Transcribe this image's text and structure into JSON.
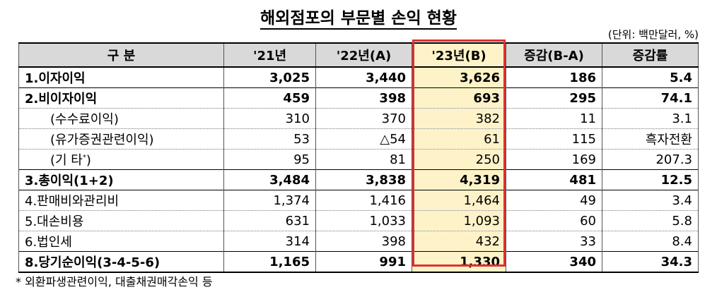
{
  "title": "해외점포의 부문별 손익 현황",
  "unit": "(단위: 백만달러, %)",
  "headers": [
    "구  분",
    "'21년",
    "'22년(A)",
    "'23년(B)",
    "증감(B-A)",
    "증감률"
  ],
  "rows": [
    {
      "label": "1.이자이익",
      "v21": "3,025",
      "v22": "3,440",
      "v23": "3,626",
      "diff": "186",
      "rate": "5.4"
    },
    {
      "label": "2.비이자이익",
      "v21": "459",
      "v22": "398",
      "v23": "693",
      "diff": "295",
      "rate": "74.1"
    },
    {
      "label": "(수수료이익)",
      "v21": "310",
      "v22": "370",
      "v23": "382",
      "diff": "11",
      "rate": "3.1"
    },
    {
      "label": "(유가증권관련이익)",
      "v21": "53",
      "v22": "△54",
      "v23": "61",
      "diff": "115",
      "rate": "흑자전환"
    },
    {
      "label": "(기   타",
      "label_sup": "*",
      "label_close": ")",
      "v21": "95",
      "v22": "81",
      "v23": "250",
      "diff": "169",
      "rate": "207.3"
    },
    {
      "label": "3.총이익(1+2)",
      "v21": "3,484",
      "v22": "3,838",
      "v23": "4,319",
      "diff": "481",
      "rate": "12.5"
    },
    {
      "label": "4.판매비와관리비",
      "v21": "1,374",
      "v22": "1,416",
      "v23": "1,464",
      "diff": "49",
      "rate": "3.4"
    },
    {
      "label": "5.대손비용",
      "v21": "631",
      "v22": "1,033",
      "v23": "1,093",
      "diff": "60",
      "rate": "5.8"
    },
    {
      "label": "6.법인세",
      "v21": "314",
      "v22": "398",
      "v23": "432",
      "diff": "33",
      "rate": "8.4"
    },
    {
      "label": "8.당기순이익(3-4-5-6)",
      "v21": "1,165",
      "v22": "991",
      "v23": "1,330",
      "diff": "340",
      "rate": "34.3"
    }
  ],
  "footnote": "* 외환파생관련이익, 대출채권매각손익 등",
  "colors": {
    "highlight": "#fef3c8",
    "header_bg": "#d9d9d9",
    "box": "#e03030"
  }
}
